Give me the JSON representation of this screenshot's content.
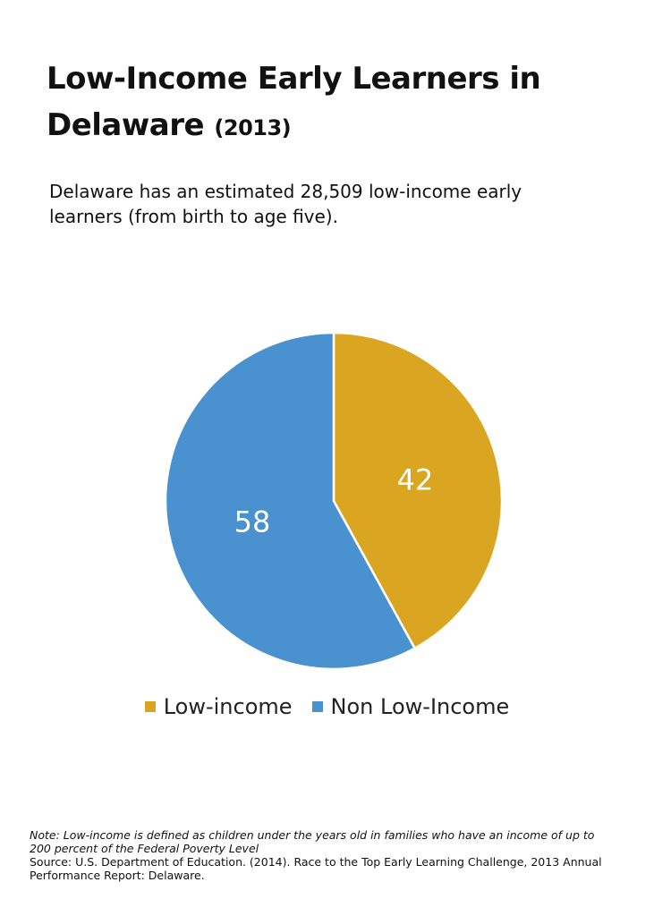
{
  "header": {
    "title": "Low-Income Early Learners in Delaware",
    "title_year": "(2013)",
    "subtitle": "Delaware has an estimated 28,509 low-income early learners (from birth to age five)."
  },
  "colors": {
    "low_income": "#DAA521",
    "non_low_income": "#4A91CF"
  },
  "chart_data": {
    "type": "pie",
    "categories": [
      "Low-income",
      "Non Low-Income"
    ],
    "values": [
      42,
      58
    ],
    "data_labels": [
      "42",
      "58"
    ],
    "start": "12 o'clock, clockwise",
    "legend_position": "bottom"
  },
  "footer": {
    "note": "Note: Low-income is defined as children under the years old in families who have an income of up to 200 percent of the Federal Poverty Level",
    "source": "Source: U.S. Department of Education. (2014). Race to the Top Early Learning Challenge, 2013 Annual Performance Report: Delaware."
  }
}
